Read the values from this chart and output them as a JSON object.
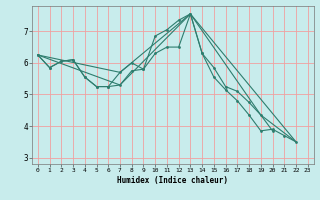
{
  "xlabel": "Humidex (Indice chaleur)",
  "bg_color": "#c8ecec",
  "grid_color": "#f0a0a0",
  "line_color": "#2e7d6e",
  "xlim": [
    -0.5,
    23.5
  ],
  "ylim": [
    2.8,
    7.8
  ],
  "yticks": [
    3,
    4,
    5,
    6,
    7
  ],
  "xticks": [
    0,
    1,
    2,
    3,
    4,
    5,
    6,
    7,
    8,
    9,
    10,
    11,
    12,
    13,
    14,
    15,
    16,
    17,
    18,
    19,
    20,
    21,
    22,
    23
  ],
  "series": [
    {
      "x": [
        0,
        1,
        2,
        3,
        4,
        5,
        6,
        7,
        8,
        9,
        10,
        11,
        12,
        13,
        14,
        15,
        16,
        17,
        18,
        19,
        20,
        21,
        22
      ],
      "y": [
        6.25,
        5.85,
        6.05,
        6.1,
        5.55,
        5.25,
        5.25,
        5.3,
        5.75,
        5.8,
        6.85,
        7.05,
        7.35,
        7.55,
        6.3,
        5.55,
        5.15,
        4.8,
        4.35,
        3.85,
        3.9,
        3.7,
        3.5
      ]
    },
    {
      "x": [
        0,
        1,
        2,
        3,
        4,
        5,
        6,
        7,
        8,
        9,
        10,
        11,
        12,
        13,
        14,
        15,
        16,
        17,
        18,
        19,
        20
      ],
      "y": [
        6.25,
        5.85,
        6.05,
        6.1,
        5.55,
        5.25,
        5.25,
        5.7,
        6.0,
        5.8,
        6.3,
        6.5,
        6.5,
        7.55,
        6.3,
        5.85,
        5.25,
        5.1,
        4.75,
        4.35,
        3.85
      ]
    },
    {
      "x": [
        0,
        7,
        13,
        22
      ],
      "y": [
        6.25,
        5.3,
        7.55,
        3.5
      ]
    },
    {
      "x": [
        0,
        7,
        13,
        19,
        22
      ],
      "y": [
        6.25,
        5.7,
        7.55,
        4.35,
        3.5
      ]
    }
  ]
}
